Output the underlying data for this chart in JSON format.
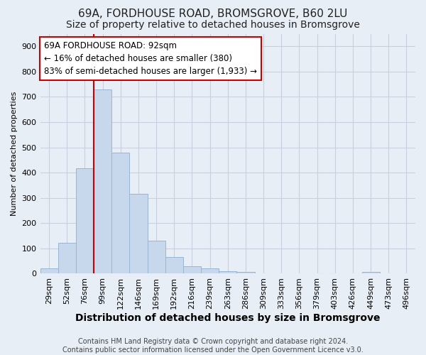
{
  "title": "69A, FORDHOUSE ROAD, BROMSGROVE, B60 2LU",
  "subtitle": "Size of property relative to detached houses in Bromsgrove",
  "xlabel": "Distribution of detached houses by size in Bromsgrove",
  "ylabel": "Number of detached properties",
  "footer_line1": "Contains HM Land Registry data © Crown copyright and database right 2024.",
  "footer_line2": "Contains public sector information licensed under the Open Government Licence v3.0.",
  "bar_labels": [
    "29sqm",
    "52sqm",
    "76sqm",
    "99sqm",
    "122sqm",
    "146sqm",
    "169sqm",
    "192sqm",
    "216sqm",
    "239sqm",
    "263sqm",
    "286sqm",
    "309sqm",
    "333sqm",
    "356sqm",
    "379sqm",
    "403sqm",
    "426sqm",
    "449sqm",
    "473sqm",
    "496sqm"
  ],
  "bar_values": [
    20,
    122,
    418,
    730,
    480,
    315,
    130,
    65,
    30,
    22,
    10,
    8,
    2,
    0,
    0,
    0,
    0,
    0,
    8,
    0,
    0
  ],
  "bar_color": "#c8d8ec",
  "bar_edge_color": "#9ab4d4",
  "vline_x_index": 3,
  "vline_color": "#cc0000",
  "annotation_text": "69A FORDHOUSE ROAD: 92sqm\n← 16% of detached houses are smaller (380)\n83% of semi-detached houses are larger (1,933) →",
  "annotation_box_color": "#ffffff",
  "annotation_box_edge": "#cc0000",
  "ylim": [
    0,
    950
  ],
  "yticks": [
    0,
    100,
    200,
    300,
    400,
    500,
    600,
    700,
    800,
    900
  ],
  "grid_color": "#c8d0e0",
  "bg_color": "#e8eef6",
  "title_fontsize": 11,
  "subtitle_fontsize": 10,
  "xlabel_fontsize": 10,
  "ylabel_fontsize": 8,
  "tick_fontsize": 8,
  "annotation_fontsize": 8.5,
  "footer_fontsize": 7
}
